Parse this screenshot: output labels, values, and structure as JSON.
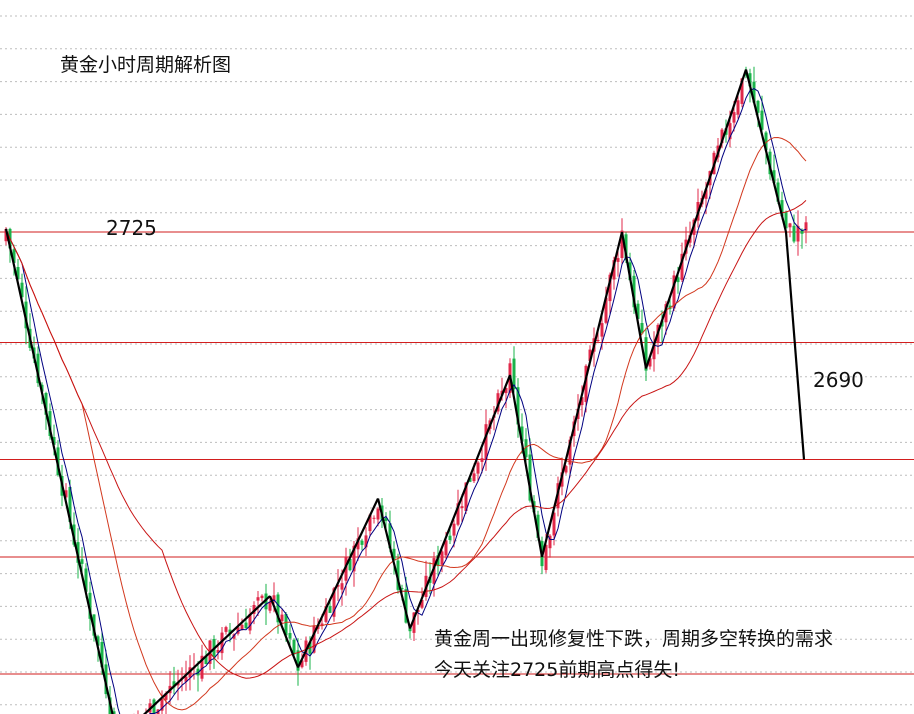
{
  "chart_data": {
    "type": "candlestick",
    "title": "黄金小时周期解析图",
    "price_labels": [
      "2725",
      "2690"
    ],
    "annotation_lines": [
      "黄金周一出现修复性下跌，周期多空转换的需求",
      "今天关注2725前期高点得失!"
    ],
    "horizontal_levels": [
      2725,
      2708,
      2690,
      2675,
      2657
    ],
    "wave_path": [
      {
        "bar": 0,
        "price": 2725.5
      },
      {
        "bar": 28,
        "price": 2647
      },
      {
        "bar": 66,
        "price": 2669
      },
      {
        "bar": 73,
        "price": 2658
      },
      {
        "bar": 93,
        "price": 2684
      },
      {
        "bar": 101,
        "price": 2664
      },
      {
        "bar": 126,
        "price": 2703
      },
      {
        "bar": 134,
        "price": 2675
      },
      {
        "bar": 154,
        "price": 2725
      },
      {
        "bar": 160,
        "price": 2704
      },
      {
        "bar": 185,
        "price": 2750
      },
      {
        "bar": 195,
        "price": 2725
      }
    ],
    "y_range": [
      2647,
      2750
    ],
    "grid": true,
    "colors": {
      "up": "#e0284a",
      "down": "#19b34a",
      "level": "#d21e1e",
      "grid": "#bdbdbd",
      "wave": "#000000",
      "ma_fast": "#000080",
      "ma_slow": "#d2381e",
      "ma_long": "#c81414"
    }
  }
}
